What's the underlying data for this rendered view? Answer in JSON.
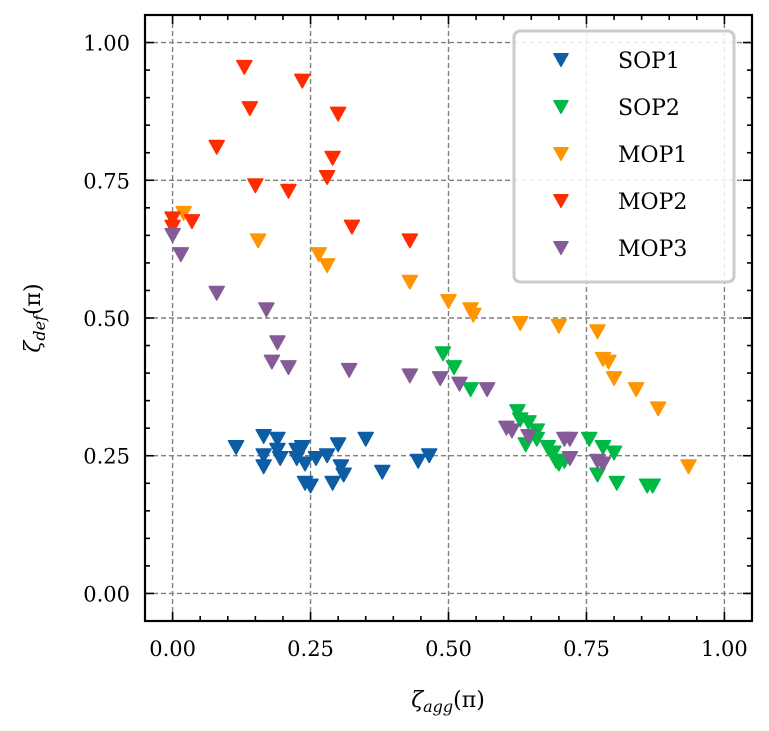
{
  "chart_data": {
    "type": "scatter",
    "title": "",
    "xlabel": "ζ_agg(π)",
    "ylabel": "ζ_def(π)",
    "xlabel_parts": {
      "main": "ζ",
      "sub": "agg",
      "suffix": "(π)"
    },
    "ylabel_parts": {
      "main": "ζ",
      "sub": "def",
      "suffix": "(π)"
    },
    "xlim": [
      -0.05,
      1.05
    ],
    "ylim": [
      -0.05,
      1.05
    ],
    "xticks": [
      0.0,
      0.25,
      0.5,
      0.75,
      1.0
    ],
    "yticks": [
      0.0,
      0.25,
      0.5,
      0.75,
      1.0
    ],
    "xtick_labels": [
      "0.00",
      "0.25",
      "0.50",
      "0.75",
      "1.00"
    ],
    "ytick_labels": [
      "0.00",
      "0.25",
      "0.50",
      "0.75",
      "1.00"
    ],
    "minor_tick_step": 0.05,
    "grid": true,
    "marker": "triangle-down",
    "legend_position": "top-right",
    "series": [
      {
        "name": "SOP1",
        "color": "#0C5DA5",
        "points": [
          [
            0.115,
            0.265
          ],
          [
            0.165,
            0.285
          ],
          [
            0.165,
            0.25
          ],
          [
            0.165,
            0.23
          ],
          [
            0.19,
            0.26
          ],
          [
            0.195,
            0.245
          ],
          [
            0.19,
            0.28
          ],
          [
            0.225,
            0.26
          ],
          [
            0.225,
            0.245
          ],
          [
            0.235,
            0.265
          ],
          [
            0.24,
            0.235
          ],
          [
            0.24,
            0.2
          ],
          [
            0.25,
            0.195
          ],
          [
            0.26,
            0.245
          ],
          [
            0.28,
            0.25
          ],
          [
            0.3,
            0.27
          ],
          [
            0.29,
            0.2
          ],
          [
            0.305,
            0.23
          ],
          [
            0.31,
            0.215
          ],
          [
            0.35,
            0.28
          ],
          [
            0.38,
            0.22
          ],
          [
            0.445,
            0.24
          ],
          [
            0.465,
            0.25
          ]
        ]
      },
      {
        "name": "SOP2",
        "color": "#00B945",
        "points": [
          [
            0.49,
            0.435
          ],
          [
            0.51,
            0.41
          ],
          [
            0.54,
            0.37
          ],
          [
            0.625,
            0.33
          ],
          [
            0.63,
            0.315
          ],
          [
            0.645,
            0.31
          ],
          [
            0.66,
            0.295
          ],
          [
            0.64,
            0.27
          ],
          [
            0.66,
            0.28
          ],
          [
            0.68,
            0.265
          ],
          [
            0.69,
            0.255
          ],
          [
            0.695,
            0.24
          ],
          [
            0.7,
            0.235
          ],
          [
            0.71,
            0.24
          ],
          [
            0.755,
            0.28
          ],
          [
            0.78,
            0.265
          ],
          [
            0.8,
            0.255
          ],
          [
            0.77,
            0.215
          ],
          [
            0.805,
            0.2
          ],
          [
            0.86,
            0.195
          ],
          [
            0.87,
            0.195
          ]
        ]
      },
      {
        "name": "MOP1",
        "color": "#FF9500",
        "points": [
          [
            0.02,
            0.69
          ],
          [
            0.155,
            0.64
          ],
          [
            0.265,
            0.615
          ],
          [
            0.28,
            0.595
          ],
          [
            0.43,
            0.565
          ],
          [
            0.5,
            0.53
          ],
          [
            0.54,
            0.515
          ],
          [
            0.545,
            0.505
          ],
          [
            0.63,
            0.49
          ],
          [
            0.7,
            0.485
          ],
          [
            0.77,
            0.475
          ],
          [
            0.78,
            0.425
          ],
          [
            0.79,
            0.42
          ],
          [
            0.8,
            0.39
          ],
          [
            0.84,
            0.37
          ],
          [
            0.88,
            0.335
          ],
          [
            0.935,
            0.23
          ]
        ]
      },
      {
        "name": "MOP2",
        "color": "#FF2C00",
        "points": [
          [
            0.13,
            0.955
          ],
          [
            0.235,
            0.93
          ],
          [
            0.14,
            0.88
          ],
          [
            0.3,
            0.87
          ],
          [
            0.08,
            0.81
          ],
          [
            0.29,
            0.79
          ],
          [
            0.28,
            0.755
          ],
          [
            0.15,
            0.74
          ],
          [
            0.21,
            0.73
          ],
          [
            0.0,
            0.68
          ],
          [
            0.035,
            0.675
          ],
          [
            0.0,
            0.665
          ],
          [
            0.325,
            0.665
          ],
          [
            0.43,
            0.64
          ]
        ]
      },
      {
        "name": "MOP3",
        "color": "#845B97",
        "points": [
          [
            0.0,
            0.65
          ],
          [
            0.015,
            0.615
          ],
          [
            0.08,
            0.545
          ],
          [
            0.17,
            0.515
          ],
          [
            0.19,
            0.455
          ],
          [
            0.18,
            0.42
          ],
          [
            0.21,
            0.41
          ],
          [
            0.32,
            0.405
          ],
          [
            0.43,
            0.395
          ],
          [
            0.485,
            0.39
          ],
          [
            0.52,
            0.38
          ],
          [
            0.57,
            0.37
          ],
          [
            0.605,
            0.3
          ],
          [
            0.615,
            0.295
          ],
          [
            0.645,
            0.285
          ],
          [
            0.71,
            0.28
          ],
          [
            0.72,
            0.28
          ],
          [
            0.72,
            0.245
          ],
          [
            0.77,
            0.24
          ],
          [
            0.78,
            0.235
          ]
        ]
      }
    ]
  }
}
